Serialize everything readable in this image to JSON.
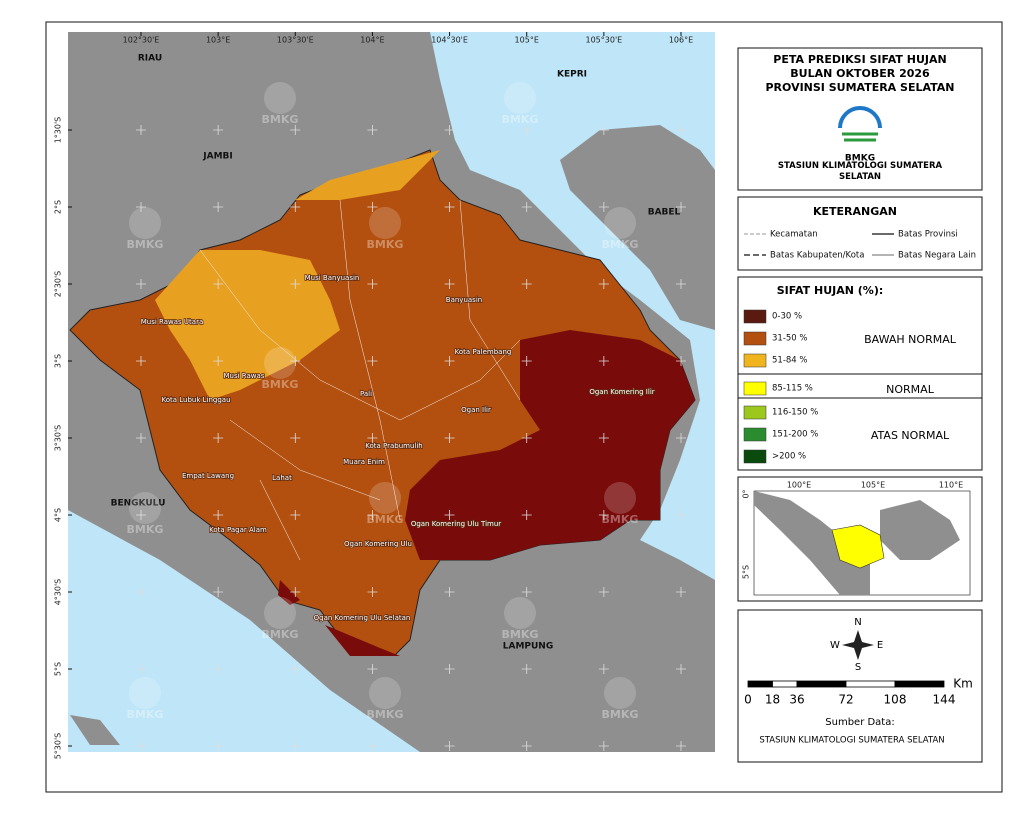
{
  "map": {
    "lon_ticks": [
      {
        "value": 102.5,
        "label": "102°30'E"
      },
      {
        "value": 103,
        "label": "103°E"
      },
      {
        "value": 103.5,
        "label": "103°30'E"
      },
      {
        "value": 104,
        "label": "104°E"
      },
      {
        "value": 104.5,
        "label": "104°30'E"
      },
      {
        "value": 105,
        "label": "105°E"
      },
      {
        "value": 105.5,
        "label": "105°30'E"
      },
      {
        "value": 106,
        "label": "106°E"
      }
    ],
    "lat_ticks": [
      {
        "value": -1.5,
        "label": "1°30'S"
      },
      {
        "value": -2,
        "label": "2°S"
      },
      {
        "value": -2.5,
        "label": "2°30'S"
      },
      {
        "value": -3,
        "label": "3°S"
      },
      {
        "value": -3.5,
        "label": "3°30'S"
      },
      {
        "value": -4,
        "label": "4°S"
      },
      {
        "value": -4.5,
        "label": "4°30'S"
      },
      {
        "value": -5,
        "label": "5°S"
      },
      {
        "value": -5.5,
        "label": "5°30'S"
      }
    ],
    "regions": [
      "RIAU",
      "JAMBI",
      "KEPRI",
      "BABEL",
      "BENGKULU",
      "LAMPUNG"
    ],
    "districts": [
      "Musi Banyuasin",
      "Banyuasin",
      "Musi Rawas Utara",
      "Musi Rawas",
      "Kota Lubuk Linggau",
      "Kota Palembang",
      "Ogan Ilir",
      "Ogan Komering Ilir",
      "Pali",
      "Kota Prabumulih",
      "Muara Enim",
      "Lahat",
      "Empat Lawang",
      "Kota Pagar Alam",
      "Ogan Komering Ulu",
      "Ogan Komering Ulu Timur",
      "Ogan Komering Ulu Selatan"
    ],
    "watermark": "BMKG"
  },
  "title": {
    "lines": [
      "PETA PREDIKSI SIFAT HUJAN",
      "BULAN OKTOBER 2026",
      "PROVINSI SUMATERA SELATAN"
    ],
    "logo_text": "BMKG",
    "station": "STASIUN KLIMATOLOGI SUMATERA SELATAN"
  },
  "keterangan": {
    "title": "KETERANGAN",
    "items": [
      "Kecamatan",
      "Batas Provinsi",
      "Batas Kabupaten/Kota",
      "Batas Negara Lain"
    ]
  },
  "legend": {
    "title": "SIFAT HUJAN (%):",
    "groups": [
      {
        "label": "BAWAH NORMAL",
        "items": [
          {
            "label": "0-30 %",
            "color": "#5a1a10"
          },
          {
            "label": "31-50 %",
            "color": "#b4500f"
          },
          {
            "label": "51-84 %",
            "color": "#f0b41e"
          }
        ]
      },
      {
        "label": "NORMAL",
        "items": [
          {
            "label": "85-115 %",
            "color": "#ffff00"
          }
        ]
      },
      {
        "label": "ATAS NORMAL",
        "items": [
          {
            "label": "116-150 %",
            "color": "#9cc81e"
          },
          {
            "label": "151-200 %",
            "color": "#2a8c2e"
          },
          {
            "label": ">200 %",
            "color": "#0a4a0c"
          }
        ]
      }
    ]
  },
  "inset": {
    "lon_labels": [
      "100°E",
      "105°E",
      "110°E"
    ],
    "lat_labels": [
      "0°",
      "5°S"
    ]
  },
  "compass": {
    "n": "N",
    "e": "E",
    "s": "S",
    "w": "W"
  },
  "scale_bar": {
    "unit": "Km",
    "ticks": [
      0,
      18,
      36,
      72,
      108,
      144
    ]
  },
  "source": {
    "label": "Sumber Data:",
    "value": "STASIUN KLIMATOLOGI SUMATERA SELATAN"
  }
}
